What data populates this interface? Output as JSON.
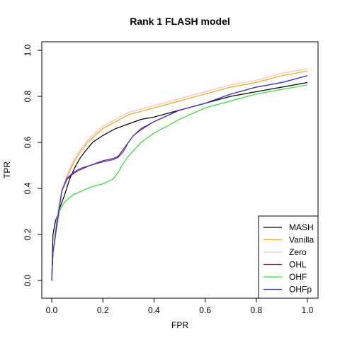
{
  "chart_data": {
    "type": "line",
    "title": "Rank 1 FLASH model",
    "xlabel": "FPR",
    "ylabel": "TPR",
    "xlim": [
      0,
      1
    ],
    "ylim": [
      0,
      1
    ],
    "x_ticks": [
      "0.0",
      "0.2",
      "0.4",
      "0.6",
      "0.8",
      "1.0"
    ],
    "y_ticks": [
      "0.0",
      "0.2",
      "0.4",
      "0.6",
      "0.8",
      "1.0"
    ],
    "grid": false,
    "legend_position": "bottom-right",
    "series": [
      {
        "name": "MASH",
        "color": "#000000",
        "points": [
          [
            0,
            0
          ],
          [
            0.005,
            0.2
          ],
          [
            0.015,
            0.26
          ],
          [
            0.03,
            0.31
          ],
          [
            0.05,
            0.37
          ],
          [
            0.07,
            0.44
          ],
          [
            0.09,
            0.49
          ],
          [
            0.11,
            0.53
          ],
          [
            0.13,
            0.56
          ],
          [
            0.16,
            0.6
          ],
          [
            0.2,
            0.63
          ],
          [
            0.25,
            0.66
          ],
          [
            0.3,
            0.68
          ],
          [
            0.35,
            0.7
          ],
          [
            0.4,
            0.71
          ],
          [
            0.5,
            0.74
          ],
          [
            0.6,
            0.77
          ],
          [
            0.7,
            0.8
          ],
          [
            0.8,
            0.82
          ],
          [
            0.9,
            0.84
          ],
          [
            1.0,
            0.86
          ]
        ]
      },
      {
        "name": "Vanilla",
        "color": "#FFA500",
        "points": [
          [
            0,
            0
          ],
          [
            0.005,
            0.12
          ],
          [
            0.02,
            0.27
          ],
          [
            0.04,
            0.39
          ],
          [
            0.06,
            0.45
          ],
          [
            0.08,
            0.5
          ],
          [
            0.1,
            0.54
          ],
          [
            0.12,
            0.57
          ],
          [
            0.14,
            0.6
          ],
          [
            0.17,
            0.63
          ],
          [
            0.2,
            0.66
          ],
          [
            0.25,
            0.69
          ],
          [
            0.3,
            0.72
          ],
          [
            0.4,
            0.75
          ],
          [
            0.5,
            0.78
          ],
          [
            0.6,
            0.81
          ],
          [
            0.7,
            0.84
          ],
          [
            0.8,
            0.86
          ],
          [
            0.9,
            0.89
          ],
          [
            1.0,
            0.91
          ]
        ]
      },
      {
        "name": "Zero",
        "color": "#FFC0CB",
        "points": [
          [
            0,
            0
          ],
          [
            0.005,
            0.12
          ],
          [
            0.02,
            0.27
          ],
          [
            0.04,
            0.4
          ],
          [
            0.06,
            0.46
          ],
          [
            0.08,
            0.51
          ],
          [
            0.1,
            0.55
          ],
          [
            0.12,
            0.58
          ],
          [
            0.14,
            0.61
          ],
          [
            0.17,
            0.64
          ],
          [
            0.2,
            0.67
          ],
          [
            0.25,
            0.7
          ],
          [
            0.3,
            0.73
          ],
          [
            0.4,
            0.76
          ],
          [
            0.5,
            0.79
          ],
          [
            0.6,
            0.82
          ],
          [
            0.7,
            0.85
          ],
          [
            0.8,
            0.87
          ],
          [
            0.9,
            0.9
          ],
          [
            1.0,
            0.92
          ]
        ]
      },
      {
        "name": "OHL",
        "color": "#8B1A3A",
        "points": [
          [
            0,
            0
          ],
          [
            0.005,
            0.12
          ],
          [
            0.02,
            0.25
          ],
          [
            0.04,
            0.39
          ],
          [
            0.06,
            0.44
          ],
          [
            0.08,
            0.46
          ],
          [
            0.1,
            0.475
          ],
          [
            0.12,
            0.485
          ],
          [
            0.15,
            0.5
          ],
          [
            0.2,
            0.52
          ],
          [
            0.24,
            0.53
          ],
          [
            0.26,
            0.54
          ],
          [
            0.28,
            0.57
          ],
          [
            0.3,
            0.6
          ],
          [
            0.32,
            0.63
          ],
          [
            0.35,
            0.66
          ],
          [
            0.4,
            0.69
          ],
          [
            0.5,
            0.74
          ],
          [
            0.6,
            0.77
          ],
          [
            0.7,
            0.81
          ],
          [
            0.8,
            0.84
          ],
          [
            0.9,
            0.86
          ],
          [
            1.0,
            0.89
          ]
        ]
      },
      {
        "name": "OHF",
        "color": "#33DD33",
        "points": [
          [
            0,
            0
          ],
          [
            0.005,
            0.12
          ],
          [
            0.02,
            0.23
          ],
          [
            0.03,
            0.3
          ],
          [
            0.05,
            0.34
          ],
          [
            0.08,
            0.37
          ],
          [
            0.12,
            0.39
          ],
          [
            0.15,
            0.405
          ],
          [
            0.2,
            0.42
          ],
          [
            0.24,
            0.44
          ],
          [
            0.26,
            0.47
          ],
          [
            0.28,
            0.51
          ],
          [
            0.3,
            0.54
          ],
          [
            0.35,
            0.6
          ],
          [
            0.4,
            0.64
          ],
          [
            0.5,
            0.7
          ],
          [
            0.6,
            0.75
          ],
          [
            0.7,
            0.78
          ],
          [
            0.8,
            0.81
          ],
          [
            0.9,
            0.83
          ],
          [
            1.0,
            0.85
          ]
        ]
      },
      {
        "name": "OHFp",
        "color": "#3333DD",
        "points": [
          [
            0,
            0
          ],
          [
            0.005,
            0.12
          ],
          [
            0.02,
            0.24
          ],
          [
            0.04,
            0.39
          ],
          [
            0.06,
            0.445
          ],
          [
            0.08,
            0.465
          ],
          [
            0.1,
            0.48
          ],
          [
            0.12,
            0.49
          ],
          [
            0.15,
            0.5
          ],
          [
            0.2,
            0.515
          ],
          [
            0.24,
            0.525
          ],
          [
            0.26,
            0.535
          ],
          [
            0.28,
            0.56
          ],
          [
            0.3,
            0.6
          ],
          [
            0.32,
            0.63
          ],
          [
            0.35,
            0.655
          ],
          [
            0.4,
            0.69
          ],
          [
            0.5,
            0.74
          ],
          [
            0.6,
            0.77
          ],
          [
            0.7,
            0.81
          ],
          [
            0.8,
            0.84
          ],
          [
            0.9,
            0.86
          ],
          [
            1.0,
            0.89
          ]
        ]
      }
    ]
  }
}
